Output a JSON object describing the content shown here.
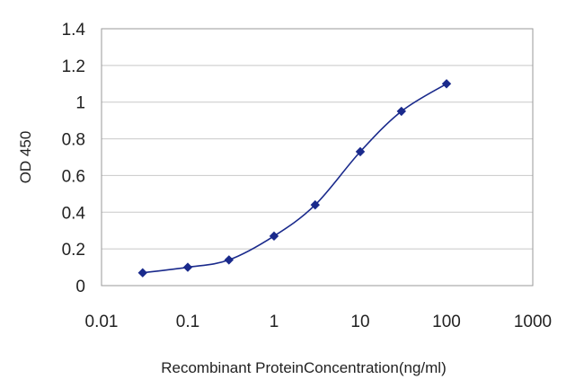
{
  "chart_data": {
    "type": "line",
    "title": "",
    "xlabel": "Recombinant ProteinConcentration(ng/ml)",
    "ylabel": "OD 450",
    "xscale": "log",
    "xlim": [
      0.01,
      1000
    ],
    "ylim": [
      0,
      1.4
    ],
    "x_ticks": [
      {
        "value": 0.01,
        "label": "0.01"
      },
      {
        "value": 0.1,
        "label": "0.1"
      },
      {
        "value": 1,
        "label": "1"
      },
      {
        "value": 10,
        "label": "10"
      },
      {
        "value": 100,
        "label": "100"
      },
      {
        "value": 1000,
        "label": "1000"
      }
    ],
    "y_ticks": [
      {
        "value": 0,
        "label": "0"
      },
      {
        "value": 0.2,
        "label": "0.2"
      },
      {
        "value": 0.4,
        "label": "0.4"
      },
      {
        "value": 0.6,
        "label": "0.6"
      },
      {
        "value": 0.8,
        "label": "0.8"
      },
      {
        "value": 1.0,
        "label": "1"
      },
      {
        "value": 1.2,
        "label": "1.2"
      },
      {
        "value": 1.4,
        "label": "1.4"
      }
    ],
    "grid": "horizontal",
    "legend": "none",
    "series": [
      {
        "color": "#1a2a8c",
        "marker": "diamond",
        "x": [
          0.03,
          0.1,
          0.3,
          1,
          3,
          10,
          30,
          100
        ],
        "y": [
          0.07,
          0.1,
          0.14,
          0.27,
          0.44,
          0.73,
          0.95,
          1.1
        ]
      }
    ],
    "colors": {
      "grid": "#c8c8c8",
      "plot_border": "#9a9a9a",
      "series": "#1a2a8c"
    }
  }
}
